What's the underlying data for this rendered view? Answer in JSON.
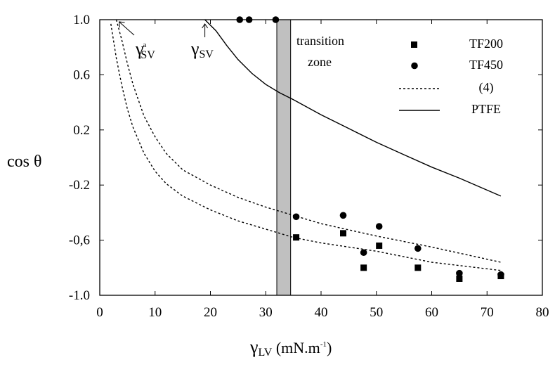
{
  "chart_data": {
    "type": "scatter",
    "title": "",
    "xlabel": {
      "main": "γ",
      "sub": "LV",
      "text": " (mN.m",
      "sup": "-1",
      "close": ")"
    },
    "ylabel": "cos θ",
    "xlim": [
      0,
      80
    ],
    "ylim": [
      -1.0,
      1.0
    ],
    "x_ticks": [
      0,
      10,
      20,
      30,
      40,
      50,
      60,
      70,
      80
    ],
    "x_tick_labels": [
      "0",
      "10",
      "20",
      "30",
      "40",
      "50",
      "60",
      "70",
      "80"
    ],
    "y_ticks": [
      1.0,
      0.6,
      0.2,
      -0.2,
      -0.6,
      -1.0
    ],
    "y_tick_labels": [
      "1.0",
      "0.6",
      "0.2",
      "-0.2",
      "-0,6",
      "-1.0"
    ],
    "grid": false,
    "legend_position": "top-right",
    "series": [
      {
        "name": "TF200",
        "kind": "marker",
        "marker": "square",
        "points": [
          [
            35.5,
            -0.58
          ],
          [
            44,
            -0.55
          ],
          [
            47.7,
            -0.8
          ],
          [
            50.5,
            -0.64
          ],
          [
            57.5,
            -0.8
          ],
          [
            65,
            -0.88
          ],
          [
            72.5,
            -0.86
          ]
        ]
      },
      {
        "name": "TF450",
        "kind": "marker",
        "marker": "circle",
        "points": [
          [
            25.3,
            1.0
          ],
          [
            27,
            1.0
          ],
          [
            31.8,
            1.0
          ],
          [
            35.5,
            -0.43
          ],
          [
            44,
            -0.42
          ],
          [
            47.7,
            -0.69
          ],
          [
            50.5,
            -0.5
          ],
          [
            57.5,
            -0.66
          ],
          [
            65,
            -0.84
          ],
          [
            72.5,
            -0.85
          ]
        ]
      },
      {
        "name": "(4)",
        "kind": "line",
        "style": "dotted",
        "curves": [
          [
            [
              2.0,
              0.97
            ],
            [
              3,
              0.72
            ],
            [
              4,
              0.52
            ],
            [
              5,
              0.35
            ],
            [
              6,
              0.22
            ],
            [
              8,
              0.03
            ],
            [
              10,
              -0.1
            ],
            [
              12,
              -0.19
            ],
            [
              15,
              -0.28
            ],
            [
              20,
              -0.38
            ],
            [
              25,
              -0.46
            ],
            [
              30,
              -0.52
            ],
            [
              35,
              -0.58
            ],
            [
              40,
              -0.62
            ],
            [
              50,
              -0.68
            ],
            [
              60,
              -0.76
            ],
            [
              72.5,
              -0.82
            ]
          ],
          [
            [
              3.0,
              1.0
            ],
            [
              4,
              0.85
            ],
            [
              5,
              0.68
            ],
            [
              6,
              0.53
            ],
            [
              8,
              0.3
            ],
            [
              10,
              0.15
            ],
            [
              12,
              0.03
            ],
            [
              15,
              -0.09
            ],
            [
              20,
              -0.2
            ],
            [
              25,
              -0.29
            ],
            [
              30,
              -0.36
            ],
            [
              35,
              -0.42
            ],
            [
              40,
              -0.48
            ],
            [
              50,
              -0.57
            ],
            [
              60,
              -0.65
            ],
            [
              72.5,
              -0.76
            ]
          ]
        ]
      },
      {
        "name": "PTFE",
        "kind": "line",
        "style": "solid",
        "points": [
          [
            19,
            1.0
          ],
          [
            21,
            0.92
          ],
          [
            23,
            0.81
          ],
          [
            25,
            0.71
          ],
          [
            27.5,
            0.61
          ],
          [
            30,
            0.53
          ],
          [
            32.5,
            0.47
          ],
          [
            35,
            0.42
          ],
          [
            40,
            0.31
          ],
          [
            45,
            0.21
          ],
          [
            50,
            0.11
          ],
          [
            55,
            0.02
          ],
          [
            60,
            -0.07
          ],
          [
            65,
            -0.15
          ],
          [
            72.5,
            -0.28
          ]
        ]
      }
    ],
    "transition_zone": {
      "x": [
        32,
        34.5
      ],
      "label_line1": "transition",
      "label_line2": "zone",
      "color": "#c0c0c0"
    },
    "annotations": {
      "gamma_a": {
        "main": "γ",
        "sub": "SV",
        "sup": "a",
        "arrow_to": [
          3.5,
          1.0
        ]
      },
      "gamma_sv": {
        "main": "γ",
        "sub": "SV",
        "arrow_to": [
          19,
          1.0
        ]
      }
    }
  }
}
